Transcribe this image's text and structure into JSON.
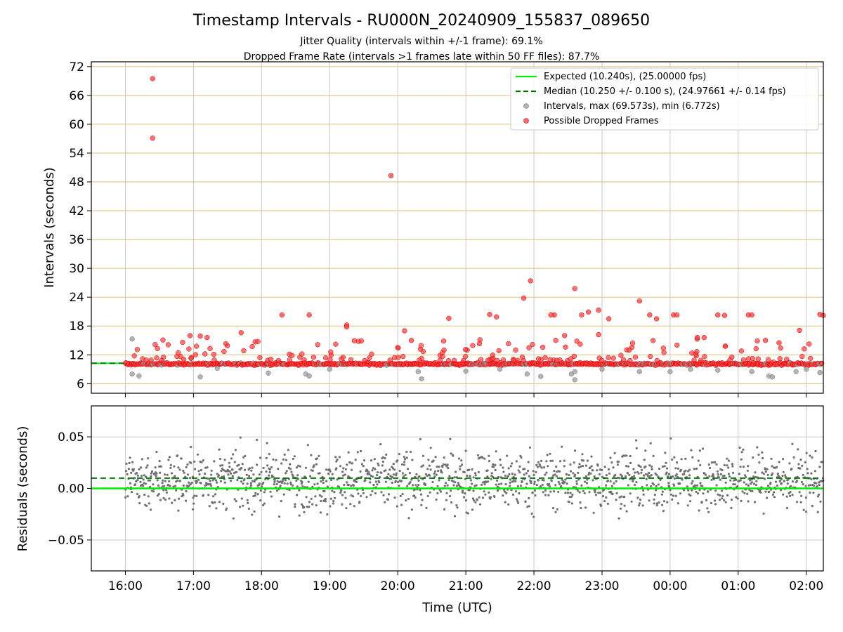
{
  "chart_data": [
    {
      "type": "scatter",
      "title": "Timestamp Intervals - RU000N_20240909_155837_089650",
      "subtitle_lines": [
        "Jitter Quality (intervals within +/-1 frame): 69.1%",
        "Dropped Frame Rate (intervals >1 frames late within 50 FF files): 87.7%"
      ],
      "ylabel": "Intervals (seconds)",
      "ylim": [
        4,
        73
      ],
      "yticks": [
        6,
        12,
        18,
        24,
        30,
        36,
        42,
        48,
        54,
        60,
        66,
        72
      ],
      "ytick_labels": [
        "6",
        "12",
        "18",
        "24",
        "30",
        "36",
        "42",
        "48",
        "54",
        "60",
        "66",
        "72"
      ],
      "xlim_hours": [
        15.5,
        26.25
      ],
      "grid": true,
      "legend_position": "top-right",
      "expected_value": 10.24,
      "median_value": 10.25,
      "legend": [
        {
          "label": "Expected (10.240s), (25.00000 fps)",
          "style": "solid-line",
          "color": "#00ee00"
        },
        {
          "label": "Median (10.250 +/- 0.100 s), (24.97661 +/- 0.14 fps)",
          "style": "dashed-line",
          "color": "#007700"
        },
        {
          "label": "Intervals, max (69.573s), min (6.772s)",
          "style": "marker",
          "color": "#9a9a9a"
        },
        {
          "label": "Possible Dropped Frames",
          "style": "marker",
          "color": "#ff3b3b"
        }
      ],
      "series": [
        {
          "name": "Possible Dropped Frames",
          "color": "#ff3b3b",
          "x_hours": [
            16.4,
            16.4,
            19.9,
            21.85,
            21.95,
            22.6,
            23.55,
            22.3,
            22.25,
            18.3,
            18.7,
            16.95,
            17.1,
            17.2,
            17.7,
            19.25,
            19.25,
            20.1,
            20.75,
            21.35,
            21.45,
            22.7,
            22.8,
            22.95,
            22.95,
            23.1,
            23.4,
            23.7,
            23.8,
            24.05,
            24.1,
            24.4,
            24.5,
            24.7,
            24.8,
            25.15,
            25.2,
            26.2,
            26.25,
            25.4,
            25.9,
            25.6,
            20.2,
            20.0,
            21.2,
            22.45
          ],
          "y": [
            69.5,
            57.1,
            49.3,
            23.8,
            27.4,
            25.8,
            23.2,
            20.3,
            20.3,
            20.3,
            20.3,
            16.0,
            15.9,
            15.6,
            16.6,
            18.2,
            17.8,
            17.0,
            19.6,
            20.4,
            19.9,
            20.3,
            20.9,
            21.3,
            16.2,
            19.5,
            13.0,
            20.3,
            19.5,
            20.3,
            20.3,
            15.6,
            15.6,
            20.3,
            20.2,
            20.3,
            20.3,
            20.4,
            20.2,
            15.0,
            17.1,
            14.5,
            15.0,
            13.5,
            14.3,
            16.0
          ]
        },
        {
          "name": "Intervals",
          "color": "#9a9a9a",
          "x_hours": [
            16.1,
            16.1,
            16.2,
            17.1,
            17.35,
            18.1,
            18.65,
            18.7,
            19.0,
            20.35,
            20.3,
            21.0,
            21.5,
            21.9,
            22.1,
            22.55,
            22.6,
            22.6,
            23.0,
            23.55,
            24.0,
            24.3,
            24.7,
            25.2,
            25.45,
            25.5,
            25.85,
            26.0,
            26.2
          ],
          "y": [
            15.3,
            8.0,
            7.6,
            7.4,
            9.2,
            8.2,
            8.0,
            7.6,
            9.0,
            7.0,
            8.5,
            8.6,
            9.0,
            8.0,
            7.5,
            8.0,
            8.5,
            6.8,
            9.0,
            8.5,
            8.5,
            9.0,
            8.8,
            8.5,
            7.6,
            7.4,
            8.5,
            9.0,
            8.3
          ]
        }
      ],
      "dense_band": {
        "description_value_range": [
          9.5,
          11.0
        ],
        "x_hours_range": [
          16.0,
          26.25
        ]
      }
    },
    {
      "type": "scatter",
      "ylabel": "Residuals (seconds)",
      "xlabel": "Time (UTC)",
      "ylim": [
        -0.08,
        0.08
      ],
      "yticks": [
        -0.05,
        0.0,
        0.05
      ],
      "ytick_labels": [
        "−0.05",
        "0.00",
        "0.05"
      ],
      "xlim_hours": [
        15.5,
        26.25
      ],
      "xticks_hours": [
        16,
        17,
        18,
        19,
        20,
        21,
        22,
        23,
        24,
        25,
        26
      ],
      "xtick_labels": [
        "16:00",
        "17:00",
        "18:00",
        "19:00",
        "20:00",
        "21:00",
        "22:00",
        "23:00",
        "00:00",
        "01:00",
        "02:00"
      ],
      "grid": true,
      "expected_residual": 0.0,
      "median_residual": 0.01,
      "series": [
        {
          "name": "Residuals",
          "color": "#707070",
          "x_hours_range": [
            16.0,
            26.25
          ],
          "spread": 0.08
        }
      ]
    }
  ]
}
